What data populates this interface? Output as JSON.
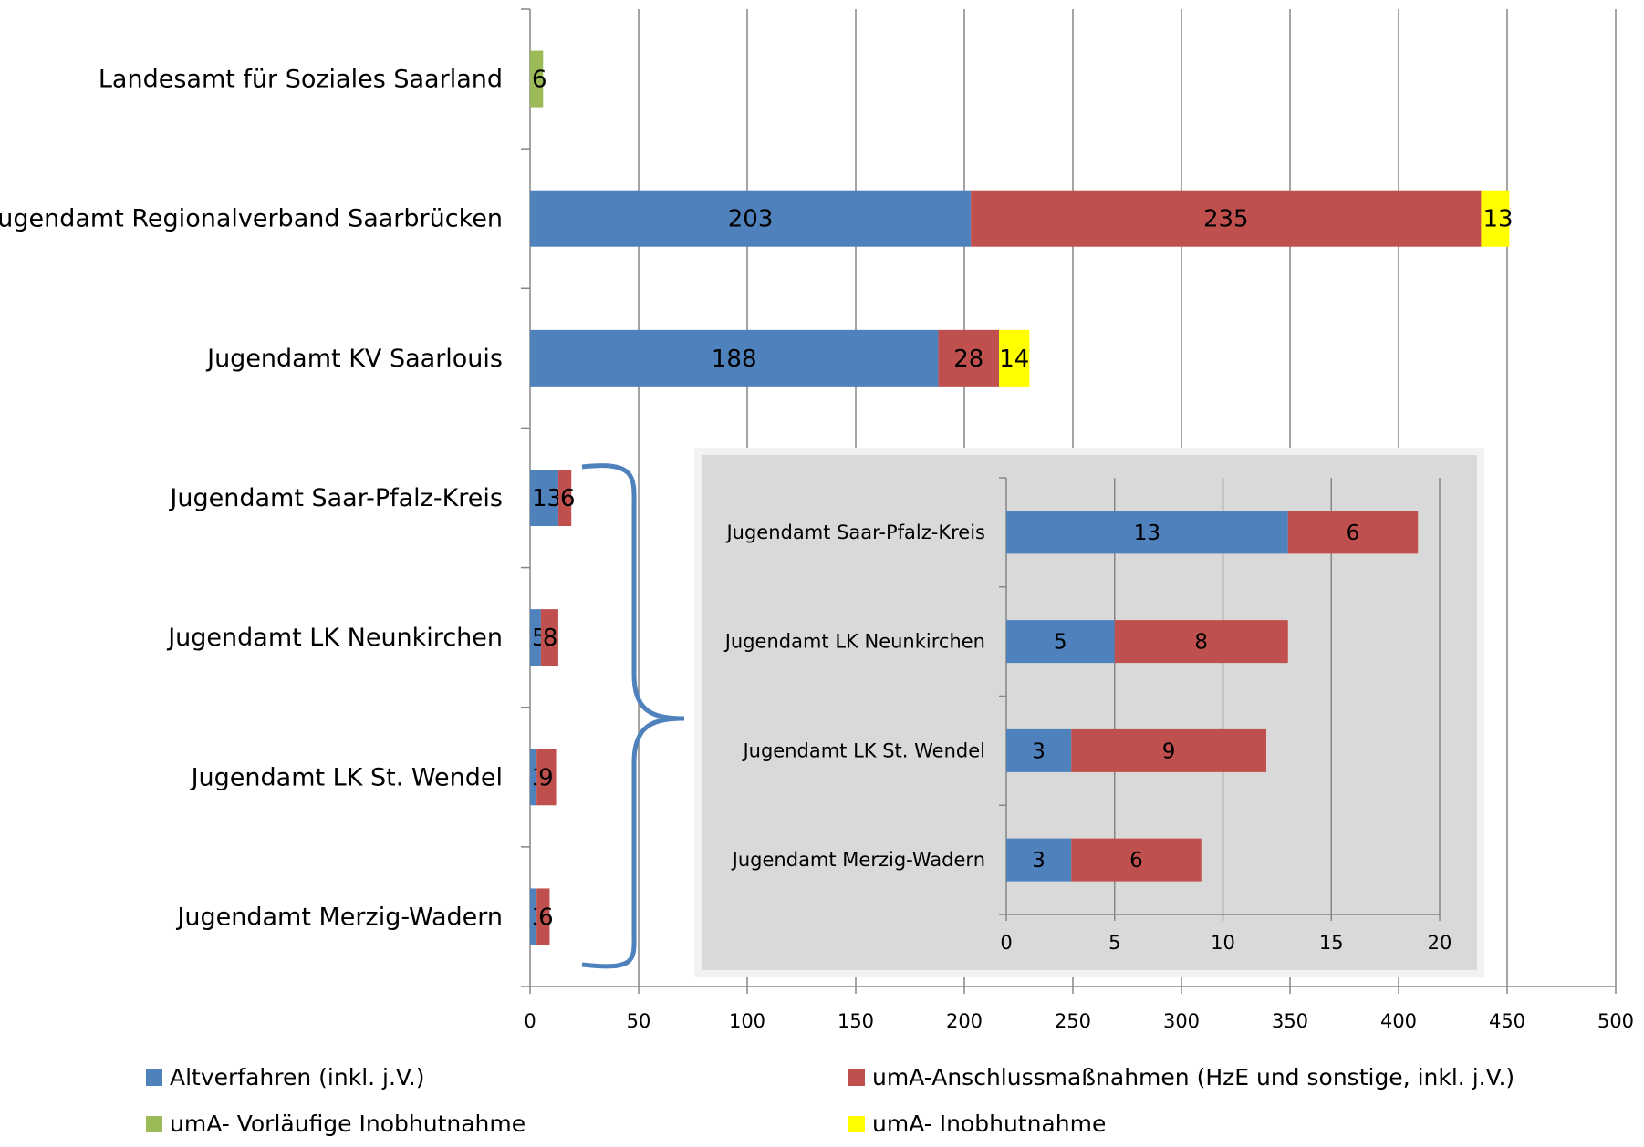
{
  "chart_data": [
    {
      "type": "bar",
      "orientation": "horizontal",
      "stacked": true,
      "categories": [
        "Landesamt für Soziales Saarland",
        "Jugendamt Regionalverband Saarbrücken",
        "Jugendamt KV Saarlouis",
        "Jugendamt Saar-Pfalz-Kreis",
        "Jugendamt LK Neunkirchen",
        "Jugendamt LK St. Wendel",
        "Jugendamt Merzig-Wadern"
      ],
      "series": [
        {
          "name": "Altverfahren (inkl. j.V.)",
          "color": "#4F81BD",
          "values": [
            0,
            203,
            188,
            13,
            5,
            3,
            3
          ]
        },
        {
          "name": "umA-Anschlussmaßnahmen (HzE und sonstige, inkl. j.V.)",
          "color": "#C0504D",
          "values": [
            0,
            235,
            28,
            6,
            8,
            9,
            6
          ]
        },
        {
          "name": "umA- Vorläufige Inobhutnahme",
          "color": "#9BBB59",
          "values": [
            6,
            0,
            0,
            0,
            0,
            0,
            0
          ]
        },
        {
          "name": "umA- Inobhutnahme",
          "color": "#FFFF00",
          "values": [
            0,
            13,
            14,
            0,
            0,
            0,
            0
          ]
        }
      ],
      "xlim": [
        0,
        500
      ],
      "xticks": [
        "0",
        "50",
        "100",
        "150",
        "200",
        "250",
        "300",
        "350",
        "400",
        "450",
        "500"
      ],
      "grid": "vertical",
      "legend": "bottom"
    },
    {
      "type": "bar",
      "orientation": "horizontal",
      "stacked": true,
      "inset": true,
      "categories": [
        "Jugendamt Saar-Pfalz-Kreis",
        "Jugendamt LK Neunkirchen",
        "Jugendamt LK St. Wendel",
        "Jugendamt Merzig-Wadern"
      ],
      "series": [
        {
          "name": "Altverfahren (inkl. j.V.)",
          "color": "#4F81BD",
          "values": [
            13,
            5,
            3,
            3
          ]
        },
        {
          "name": "umA-Anschlussmaßnahmen (HzE und sonstige, inkl. j.V.)",
          "color": "#C0504D",
          "values": [
            6,
            8,
            9,
            6
          ]
        }
      ],
      "xlim": [
        0,
        20
      ],
      "xticks": [
        "0",
        "5",
        "10",
        "15",
        "20"
      ],
      "grid": "vertical",
      "background": "#D9D9D9"
    }
  ]
}
